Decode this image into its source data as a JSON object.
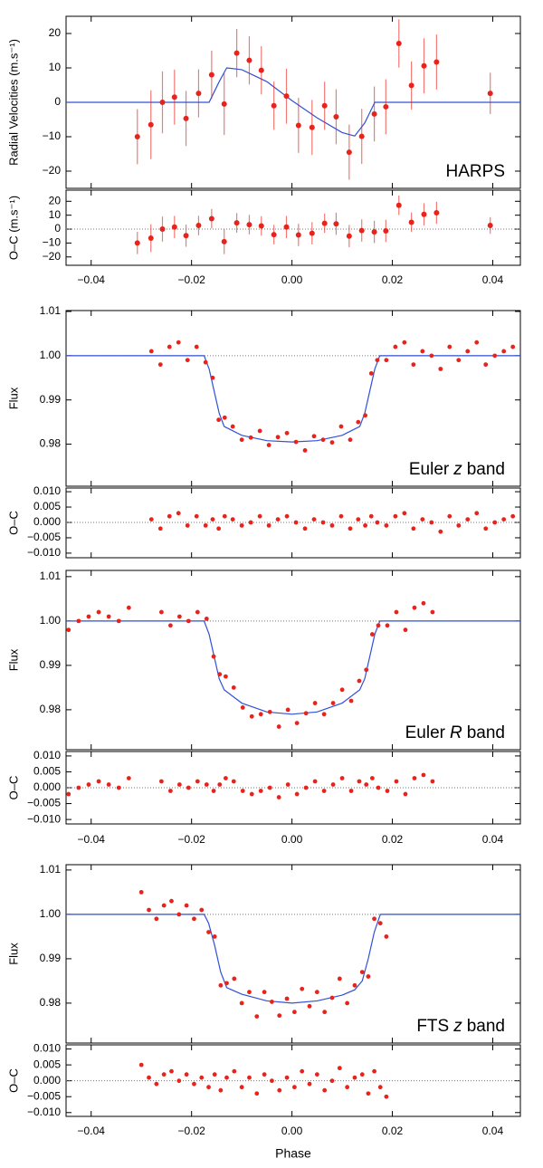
{
  "chart_data": [
    {
      "type": "scatter",
      "annotation": [
        "HARPS"
      ],
      "ylabel": "Radial Velocities (m.s⁻¹)",
      "residual_ylabel": "O–C (m.s⁻¹)",
      "x": [
        -0.0308,
        -0.0281,
        -0.0258,
        -0.0234,
        -0.0211,
        -0.0186,
        -0.016,
        -0.0135,
        -0.011,
        -0.0085,
        -0.0061,
        -0.0036,
        -0.0011,
        0.0013,
        0.004,
        0.0065,
        0.0088,
        0.0114,
        0.0139,
        0.0164,
        0.0187,
        0.0213,
        0.0238,
        0.0263,
        0.0288,
        0.0395
      ],
      "values": [
        -10,
        -6.5,
        0,
        1.5,
        -4.7,
        2.6,
        8,
        -0.5,
        14.3,
        12.2,
        9.3,
        -1,
        1.8,
        -6.7,
        -7.3,
        -1,
        -4.2,
        -14.5,
        -9.9,
        -3.4,
        -1.3,
        17.1,
        4.9,
        10.6,
        11.7,
        2.6
      ],
      "errors": [
        8,
        10,
        9,
        8,
        8,
        7,
        7,
        9,
        7,
        7,
        7,
        7,
        8,
        8,
        8,
        7,
        8,
        8,
        8,
        8,
        8,
        7,
        7,
        8,
        8,
        6
      ],
      "residuals": [
        -10,
        -6.5,
        0,
        1.5,
        -4.7,
        2.6,
        7.5,
        -9,
        4.5,
        3.2,
        2.3,
        -4,
        1.5,
        -4.2,
        -3,
        4.2,
        3.8,
        -5,
        -1,
        -2,
        -1.3,
        17.1,
        4.9,
        10.6,
        11.7,
        2.6
      ],
      "model_x": [
        -0.045,
        -0.0165,
        -0.0145,
        -0.013,
        -0.01,
        -0.005,
        0,
        0.005,
        0.01,
        0.0125,
        0.0145,
        0.0165,
        0.0455
      ],
      "model_values": [
        0,
        0,
        6,
        10,
        9.5,
        6,
        0.5,
        -4.5,
        -8.8,
        -9.8,
        -6,
        0,
        0
      ],
      "color": "#e8231c",
      "model_color": "#3050d8",
      "xlim": [
        -0.045,
        0.0455
      ],
      "xticks": [
        {
          "value": -0.04,
          "label": "−0.04"
        },
        {
          "value": -0.02,
          "label": "−0.02"
        },
        {
          "value": 0,
          "label": "0.00"
        },
        {
          "value": 0.02,
          "label": "0.02"
        },
        {
          "value": 0.04,
          "label": "0.04"
        }
      ],
      "ylim": [
        -25,
        25
      ],
      "yticks": [
        {
          "value": -20,
          "label": "−20"
        },
        {
          "value": -10,
          "label": "−10"
        },
        0,
        10,
        20
      ],
      "residual_ylim": [
        -26,
        28
      ],
      "residual_yticks": [
        {
          "value": -20,
          "label": "−20"
        },
        {
          "value": -10,
          "label": "−10"
        },
        0,
        10,
        20
      ],
      "residual_reference": 0
    },
    {
      "type": "scatter",
      "annotation": [
        "Euler",
        "z",
        "band"
      ],
      "ylabel": "Flux",
      "residual_ylabel": "O–C",
      "x": [
        -0.028,
        -0.0262,
        -0.0244,
        -0.0226,
        -0.0208,
        -0.019,
        -0.0172,
        -0.0158,
        -0.0146,
        -0.0134,
        -0.0118,
        -0.01,
        -0.0082,
        -0.0064,
        -0.0046,
        -0.0028,
        -0.001,
        0.0008,
        0.0026,
        0.0044,
        0.0062,
        0.008,
        0.0098,
        0.0116,
        0.0132,
        0.0146,
        0.0158,
        0.017,
        0.0188,
        0.0206,
        0.0224,
        0.0242,
        0.026,
        0.0278,
        0.0296,
        0.0314,
        0.0332,
        0.035,
        0.0368,
        0.0386,
        0.0404,
        0.0422,
        0.044
      ],
      "values": [
        1.001,
        0.998,
        1.002,
        1.003,
        0.999,
        1.002,
        0.9985,
        0.995,
        0.9855,
        0.986,
        0.984,
        0.981,
        0.9815,
        0.983,
        0.9798,
        0.9816,
        0.9825,
        0.9805,
        0.9786,
        0.9818,
        0.981,
        0.9804,
        0.984,
        0.981,
        0.985,
        0.9865,
        0.996,
        0.999,
        0.999,
        1.002,
        1.003,
        0.998,
        1.001,
        1.0,
        0.997,
        1.002,
        0.999,
        1.001,
        1.003,
        0.998,
        1.0,
        1.001,
        1.002
      ],
      "residuals": [
        0.001,
        -0.002,
        0.002,
        0.003,
        -0.001,
        0.002,
        -0.001,
        0.001,
        -0.002,
        0.002,
        0.001,
        -0.001,
        0,
        0.002,
        -0.001,
        0.001,
        0.002,
        0,
        -0.002,
        0.001,
        0,
        -0.001,
        0.002,
        -0.002,
        0.001,
        -0.001,
        0.002,
        0,
        -0.001,
        0.002,
        0.003,
        -0.002,
        0.001,
        0,
        -0.003,
        0.002,
        -0.001,
        0.001,
        0.003,
        -0.002,
        0,
        0.001,
        0.002
      ],
      "model_x": [
        -0.045,
        -0.0175,
        -0.0165,
        -0.0155,
        -0.0145,
        -0.0135,
        -0.01,
        -0.005,
        0,
        0.005,
        0.01,
        0.0135,
        0.0145,
        0.0155,
        0.0165,
        0.0175,
        0.0455
      ],
      "model_values": [
        1,
        1,
        0.997,
        0.992,
        0.987,
        0.984,
        0.982,
        0.9808,
        0.9805,
        0.9808,
        0.982,
        0.984,
        0.987,
        0.992,
        0.997,
        1,
        1
      ],
      "color": "#e8231c",
      "model_color": "#3050d8",
      "xlim": [
        -0.045,
        0.0455
      ],
      "xtick_labels": false,
      "xticks": [
        {
          "value": -0.04,
          "label": "−0.04"
        },
        {
          "value": -0.02,
          "label": "−0.02"
        },
        {
          "value": 0,
          "label": "0.00"
        },
        {
          "value": 0.02,
          "label": "0.02"
        },
        {
          "value": 0.04,
          "label": "0.04"
        }
      ],
      "ylim": [
        0.9705,
        1.0102
      ],
      "yticks": [
        {
          "value": 0.98,
          "label": "0.98"
        },
        {
          "value": 0.99,
          "label": "0.99"
        },
        {
          "value": 1,
          "label": "1.00"
        },
        {
          "value": 1.01,
          "label": "1.01"
        }
      ],
      "reference_line": 1,
      "residual_ylim": [
        -0.0115,
        0.0112
      ],
      "residual_yticks": [
        {
          "value": -0.01,
          "label": "−0.010"
        },
        {
          "value": -0.005,
          "label": "−0.005"
        },
        {
          "value": 0,
          "label": "0.000"
        },
        {
          "value": 0.005,
          "label": "0.005"
        },
        {
          "value": 0.01,
          "label": "0.010"
        }
      ],
      "residual_reference": 0
    },
    {
      "type": "scatter",
      "annotation": [
        "Euler",
        "R",
        "band"
      ],
      "ylabel": "Flux",
      "residual_ylabel": "O–C",
      "x": [
        -0.0445,
        -0.0425,
        -0.0405,
        -0.0385,
        -0.0365,
        -0.0345,
        -0.0325,
        -0.026,
        -0.0242,
        -0.0224,
        -0.0206,
        -0.0188,
        -0.017,
        -0.0156,
        -0.0144,
        -0.0132,
        -0.0116,
        -0.0098,
        -0.008,
        -0.0062,
        -0.0044,
        -0.0026,
        -0.0008,
        0.001,
        0.0028,
        0.0046,
        0.0064,
        0.0082,
        0.01,
        0.0118,
        0.0134,
        0.0148,
        0.016,
        0.0172,
        0.019,
        0.0208,
        0.0226,
        0.0244,
        0.0262,
        0.028
      ],
      "values": [
        0.998,
        1.0,
        1.001,
        1.002,
        1.001,
        1.0,
        1.003,
        1.002,
        0.999,
        1.001,
        1.0,
        1.002,
        1.0005,
        0.992,
        0.988,
        0.9875,
        0.985,
        0.9805,
        0.9785,
        0.979,
        0.9795,
        0.9762,
        0.98,
        0.977,
        0.9792,
        0.9815,
        0.979,
        0.9815,
        0.9845,
        0.982,
        0.9865,
        0.989,
        0.997,
        0.999,
        0.999,
        1.002,
        0.998,
        1.003,
        1.004,
        1.002
      ],
      "residuals": [
        -0.002,
        0,
        0.001,
        0.002,
        0.001,
        0,
        0.003,
        0.002,
        -0.001,
        0.001,
        0,
        0.002,
        0.001,
        -0.001,
        0.001,
        0.003,
        0.002,
        -0.001,
        -0.002,
        -0.001,
        0,
        -0.003,
        0.001,
        -0.002,
        0,
        0.002,
        -0.001,
        0.001,
        0.003,
        -0.001,
        0.002,
        0.001,
        0.003,
        0,
        -0.001,
        0.002,
        -0.002,
        0.003,
        0.004,
        0.002
      ],
      "model_x": [
        -0.045,
        -0.0175,
        -0.0165,
        -0.0155,
        -0.0145,
        -0.0135,
        -0.01,
        -0.005,
        0,
        0.005,
        0.01,
        0.0135,
        0.0145,
        0.0155,
        0.0165,
        0.0175,
        0.0455
      ],
      "model_values": [
        1,
        1,
        0.997,
        0.992,
        0.987,
        0.9845,
        0.9815,
        0.9795,
        0.979,
        0.9795,
        0.9815,
        0.9845,
        0.987,
        0.992,
        0.997,
        1,
        1
      ],
      "color": "#e8231c",
      "model_color": "#3050d8",
      "xlim": [
        -0.045,
        0.0455
      ],
      "xticks": [
        {
          "value": -0.04,
          "label": "−0.04"
        },
        {
          "value": -0.02,
          "label": "−0.02"
        },
        {
          "value": 0,
          "label": "0.00"
        },
        {
          "value": 0.02,
          "label": "0.02"
        },
        {
          "value": 0.04,
          "label": "0.04"
        }
      ],
      "ylim": [
        0.971,
        1.0114
      ],
      "yticks": [
        {
          "value": 0.98,
          "label": "0.98"
        },
        {
          "value": 0.99,
          "label": "0.99"
        },
        {
          "value": 1,
          "label": "1.00"
        },
        {
          "value": 1.01,
          "label": "1.01"
        }
      ],
      "reference_line": 1,
      "residual_ylim": [
        -0.0114,
        0.0114
      ],
      "residual_yticks": [
        {
          "value": -0.01,
          "label": "−0.010"
        },
        {
          "value": -0.005,
          "label": "−0.005"
        },
        {
          "value": 0,
          "label": "0.000"
        },
        {
          "value": 0.005,
          "label": "0.005"
        },
        {
          "value": 0.01,
          "label": "0.010"
        }
      ],
      "residual_reference": 0
    },
    {
      "type": "scatter",
      "annotation": [
        "FTS",
        "z",
        "band"
      ],
      "ylabel": "Flux",
      "residual_ylabel": "O–C",
      "xlabel": "Phase",
      "x": [
        -0.03,
        -0.0285,
        -0.027,
        -0.0255,
        -0.024,
        -0.0225,
        -0.021,
        -0.0195,
        -0.018,
        -0.0166,
        -0.0154,
        -0.0142,
        -0.013,
        -0.0115,
        -0.01,
        -0.0085,
        -0.007,
        -0.0055,
        -0.004,
        -0.0025,
        -0.001,
        0.0005,
        0.002,
        0.0035,
        0.005,
        0.0065,
        0.008,
        0.0095,
        0.011,
        0.0125,
        0.014,
        0.0152,
        0.0164,
        0.0176,
        0.0188
      ],
      "values": [
        1.005,
        1.001,
        0.999,
        1.002,
        1.003,
        1.0,
        1.002,
        0.999,
        1.001,
        0.996,
        0.995,
        0.984,
        0.9845,
        0.9855,
        0.98,
        0.9825,
        0.977,
        0.9825,
        0.9803,
        0.9772,
        0.981,
        0.978,
        0.9832,
        0.9793,
        0.9825,
        0.978,
        0.9812,
        0.9855,
        0.98,
        0.984,
        0.987,
        0.986,
        0.999,
        0.998,
        0.995
      ],
      "residuals": [
        0.005,
        0.001,
        -0.001,
        0.002,
        0.003,
        0,
        0.002,
        -0.001,
        0.001,
        -0.002,
        0.002,
        -0.003,
        0.001,
        0.003,
        -0.002,
        0.001,
        -0.004,
        0.002,
        0,
        -0.003,
        0.001,
        -0.002,
        0.003,
        -0.001,
        0.002,
        -0.003,
        0,
        0.004,
        -0.002,
        0.001,
        0.002,
        -0.004,
        0.003,
        -0.002,
        -0.005
      ],
      "model_x": [
        -0.045,
        -0.0175,
        -0.0166,
        -0.0154,
        -0.0142,
        -0.013,
        -0.01,
        -0.005,
        0,
        0.005,
        0.01,
        0.0125,
        0.014,
        0.0152,
        0.0164,
        0.0176,
        0.0455
      ],
      "model_values": [
        1,
        1,
        0.998,
        0.993,
        0.987,
        0.9835,
        0.982,
        0.9805,
        0.98,
        0.9805,
        0.9818,
        0.983,
        0.985,
        0.99,
        0.996,
        1,
        1
      ],
      "color": "#e8231c",
      "model_color": "#3050d8",
      "xlim": [
        -0.045,
        0.0455
      ],
      "xticks": [
        {
          "value": -0.04,
          "label": "−0.04"
        },
        {
          "value": -0.02,
          "label": "−0.02"
        },
        {
          "value": 0,
          "label": "0.00"
        },
        {
          "value": 0.02,
          "label": "0.02"
        },
        {
          "value": 0.04,
          "label": "0.04"
        }
      ],
      "ylim": [
        0.971,
        1.0112
      ],
      "yticks": [
        {
          "value": 0.98,
          "label": "0.98"
        },
        {
          "value": 0.99,
          "label": "0.99"
        },
        {
          "value": 1,
          "label": "1.00"
        },
        {
          "value": 1.01,
          "label": "1.01"
        }
      ],
      "reference_line": 1,
      "residual_ylim": [
        -0.0112,
        0.0113
      ],
      "residual_yticks": [
        {
          "value": -0.01,
          "label": "−0.010"
        },
        {
          "value": -0.005,
          "label": "−0.005"
        },
        {
          "value": 0,
          "label": "0.000"
        },
        {
          "value": 0.005,
          "label": "0.005"
        },
        {
          "value": 0.01,
          "label": "0.010"
        }
      ],
      "residual_reference": 0
    }
  ]
}
